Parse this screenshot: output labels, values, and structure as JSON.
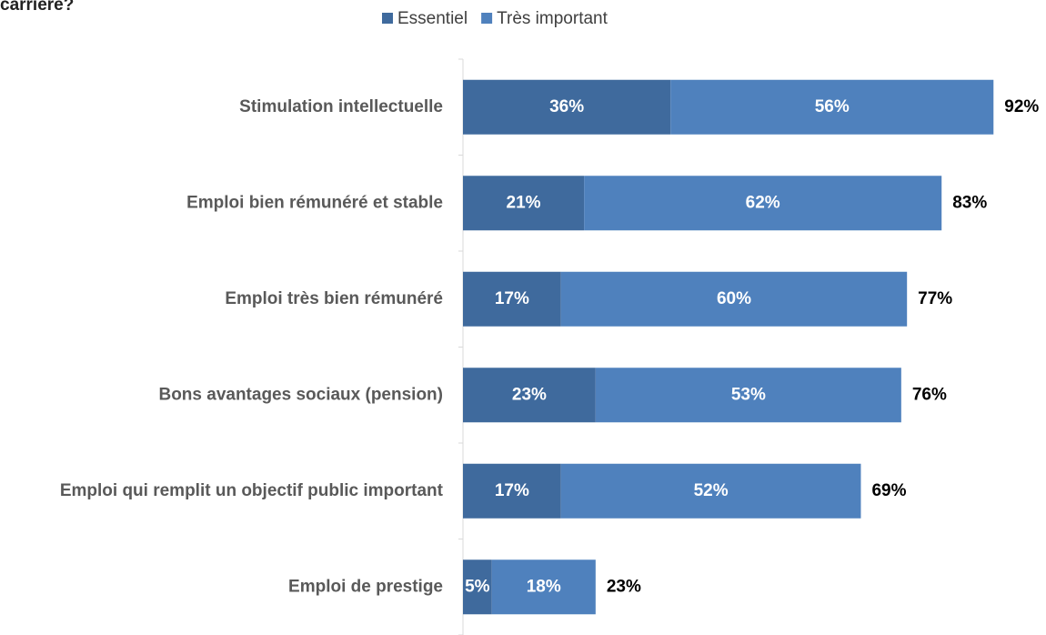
{
  "chart_data": {
    "type": "stacked_bar_horizontal",
    "title": "carrière?",
    "categories": [
      "Stimulation intellectuelle",
      "Emploi bien rémunéré et stable",
      "Emploi très bien rémunéré",
      "Bons avantages sociaux (pension)",
      "Emploi qui remplit un objectif public important",
      "Emploi de prestige"
    ],
    "series": [
      {
        "name": "Essentiel",
        "color": "#3f6a9d",
        "values": [
          36,
          21,
          17,
          23,
          17,
          5
        ],
        "value_labels": [
          "36%",
          "21%",
          "17%",
          "23%",
          "17%",
          "5%"
        ]
      },
      {
        "name": "Très important",
        "color": "#4f81bd",
        "values": [
          56,
          62,
          60,
          53,
          52,
          18
        ],
        "value_labels": [
          "56%",
          "62%",
          "60%",
          "53%",
          "52%",
          "18%"
        ]
      }
    ],
    "totals": [
      92,
      83,
      77,
      76,
      69,
      23
    ],
    "total_labels": [
      "92%",
      "83%",
      "77%",
      "76%",
      "69%",
      "23%"
    ],
    "xlim": [
      0,
      100
    ],
    "legend": "top"
  }
}
